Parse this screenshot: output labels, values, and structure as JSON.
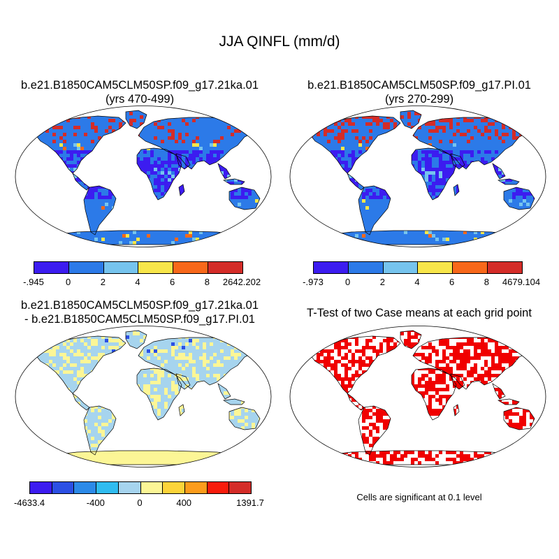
{
  "title": "JJA QINFL (mm/d)",
  "panels": [
    {
      "title_line1": "b.e21.B1850CAM5CLM50SP.f09_g17.21ka.01",
      "title_line2": "(yrs 470-499)"
    },
    {
      "title_line1": "b.e21.B1850CAM5CLM50SP.f09_g17.PI.01",
      "title_line2": "(yrs 270-299)"
    },
    {
      "title_line1": "b.e21.B1850CAM5CLM50SP.f09_g17.21ka.01",
      "title_line2": "- b.e21.B1850CAM5CLM50SP.f09_g17.PI.01"
    },
    {
      "title_line1": "T-Test of two Case means at each grid point"
    }
  ],
  "colorbars": [
    {
      "colors": [
        "#3c1cf0",
        "#2c7ae8",
        "#76c4ee",
        "#f8e64a",
        "#f8681a",
        "#d42c28"
      ],
      "labels": [
        "-.945",
        "0",
        "2",
        "4",
        "6",
        "8",
        "2642.202"
      ]
    },
    {
      "colors": [
        "#3c1cf0",
        "#2c7ae8",
        "#76c4ee",
        "#f8e64a",
        "#f8681a",
        "#d42c28"
      ],
      "labels": [
        "-.973",
        "0",
        "2",
        "4",
        "6",
        "8",
        "4679.104"
      ]
    },
    {
      "colors": [
        "#3c1cf0",
        "#2c50e4",
        "#2c8ae8",
        "#30bcf0",
        "#a6d4ee",
        "#fcf696",
        "#fcd43a",
        "#fc9c1c",
        "#f81c0c",
        "#d42c28"
      ],
      "labels": [
        "-4633.4",
        "-400",
        "0",
        "400",
        "1391.7"
      ]
    }
  ],
  "significance_note": "Cells are significant at 0.1 level",
  "colors": {
    "ocean": "#ffffff",
    "significant": "#f00000"
  }
}
